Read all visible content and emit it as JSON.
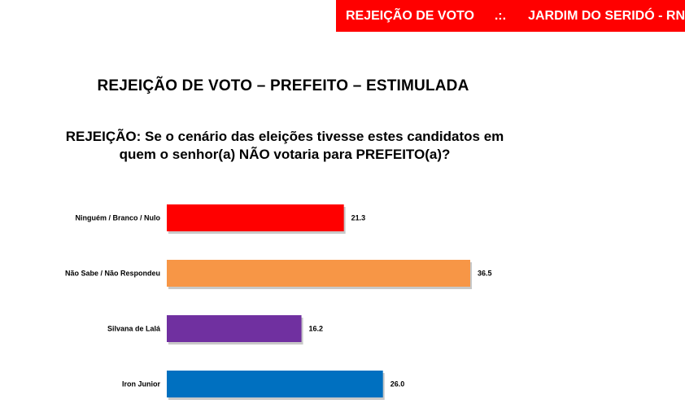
{
  "header": {
    "left_text": "REJEIÇÃO DE VOTO",
    "separator": ".:.",
    "right_text": "JARDIM DO SERIDÓ - RN",
    "color": "#ff0000"
  },
  "title": "REJEIÇÃO DE VOTO – PREFEITO – ESTIMULADA",
  "question": {
    "line1": "REJEIÇÃO: Se o cenário das eleições tivesse estes candidatos em",
    "line2": "quem o senhor(a) NÃO votaria para PREFEITO(a)?"
  },
  "chart_data": {
    "type": "bar",
    "orientation": "horizontal",
    "categories": [
      "Ninguém / Branco / Nulo",
      "Não Sabe / Não Respondeu",
      "Silvana de Lalá",
      "Iron Junior"
    ],
    "values": [
      21.3,
      36.5,
      16.2,
      26.0
    ],
    "value_labels": [
      "21.3",
      "36.5",
      "16.2",
      "26.0"
    ],
    "colors": [
      "#ff0000",
      "#f79646",
      "#7030a0",
      "#0070c0"
    ],
    "xlim": [
      0,
      36.5
    ]
  }
}
